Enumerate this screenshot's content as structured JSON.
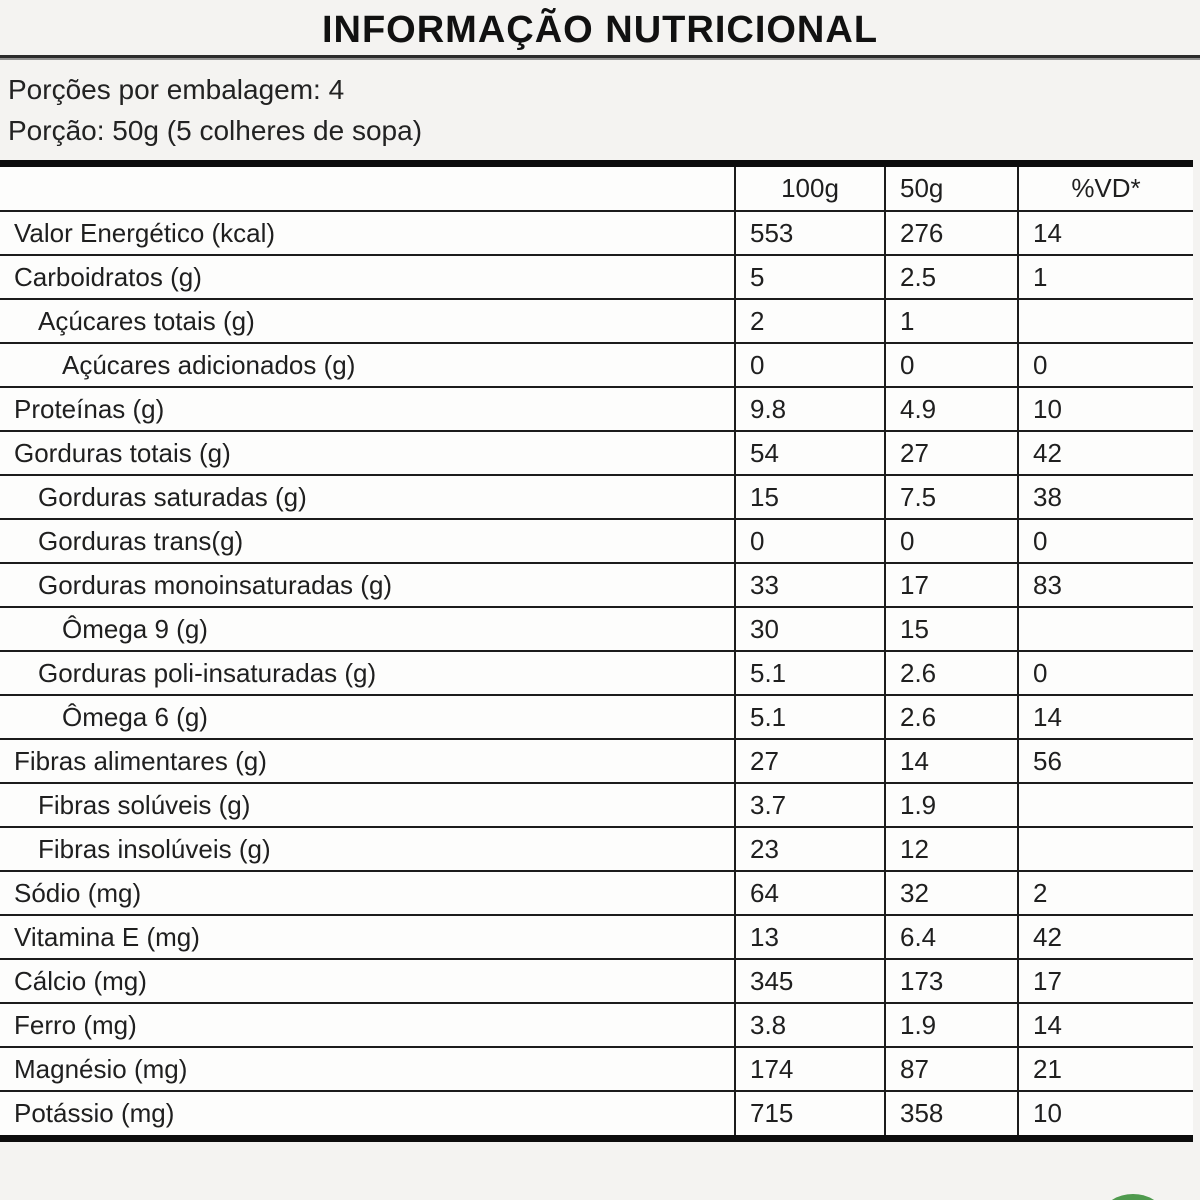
{
  "title": "INFORMAÇÃO NUTRICIONAL",
  "servings_line": "Porções por embalagem: 4",
  "portion_line": "Porção: 50g (5 colheres de sopa)",
  "colors": {
    "accent_green": "#4f9a4e",
    "line_black": "#0d0d0d",
    "grid_dark": "#1c1c1c"
  },
  "table": {
    "columns": [
      "",
      "100g",
      "50g",
      "%VD*"
    ],
    "rows": [
      {
        "label": "Valor Energético (kcal)",
        "indent": 0,
        "v100": "553",
        "v50": "276",
        "vd": "14"
      },
      {
        "label": "Carboidratos (g)",
        "indent": 0,
        "v100": "5",
        "v50": "2.5",
        "vd": "1"
      },
      {
        "label": "Açúcares totais (g)",
        "indent": 1,
        "v100": "2",
        "v50": "1",
        "vd": ""
      },
      {
        "label": "Açúcares adicionados (g)",
        "indent": 2,
        "v100": "0",
        "v50": "0",
        "vd": "0"
      },
      {
        "label": "Proteínas (g)",
        "indent": 0,
        "v100": "9.8",
        "v50": "4.9",
        "vd": "10"
      },
      {
        "label": "Gorduras totais (g)",
        "indent": 0,
        "v100": "54",
        "v50": "27",
        "vd": "42"
      },
      {
        "label": "Gorduras saturadas (g)",
        "indent": 1,
        "v100": "15",
        "v50": "7.5",
        "vd": "38"
      },
      {
        "label": "Gorduras trans(g)",
        "indent": 1,
        "v100": "0",
        "v50": "0",
        "vd": "0"
      },
      {
        "label": "Gorduras monoinsaturadas (g)",
        "indent": 1,
        "v100": "33",
        "v50": "17",
        "vd": "83"
      },
      {
        "label": "Ômega 9 (g)",
        "indent": 2,
        "v100": "30",
        "v50": "15",
        "vd": ""
      },
      {
        "label": "Gorduras poli-insaturadas (g)",
        "indent": 1,
        "v100": "5.1",
        "v50": "2.6",
        "vd": "0"
      },
      {
        "label": "Ômega 6 (g)",
        "indent": 2,
        "v100": "5.1",
        "v50": "2.6",
        "vd": "14"
      },
      {
        "label": "Fibras alimentares (g)",
        "indent": 0,
        "v100": "27",
        "v50": "14",
        "vd": "56"
      },
      {
        "label": "Fibras solúveis (g)",
        "indent": 1,
        "v100": "3.7",
        "v50": "1.9",
        "vd": ""
      },
      {
        "label": "Fibras insolúveis (g)",
        "indent": 1,
        "v100": "23",
        "v50": "12",
        "vd": ""
      },
      {
        "label": "Sódio (mg)",
        "indent": 0,
        "v100": "64",
        "v50": "32",
        "vd": "2"
      },
      {
        "label": "Vitamina E (mg)",
        "indent": 0,
        "v100": "13",
        "v50": "6.4",
        "vd": "42"
      },
      {
        "label": "Cálcio (mg)",
        "indent": 0,
        "v100": "345",
        "v50": "173",
        "vd": "17"
      },
      {
        "label": "Ferro (mg)",
        "indent": 0,
        "v100": "3.8",
        "v50": "1.9",
        "vd": "14"
      },
      {
        "label": "Magnésio (mg)",
        "indent": 0,
        "v100": "174",
        "v50": "87",
        "vd": "21"
      },
      {
        "label": "Potássio (mg)",
        "indent": 0,
        "v100": "715",
        "v50": "358",
        "vd": "10"
      }
    ]
  }
}
